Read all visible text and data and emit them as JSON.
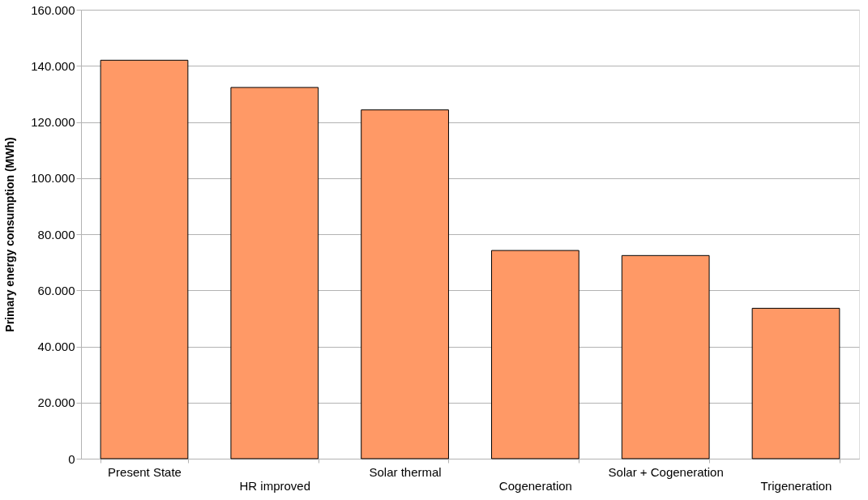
{
  "chart_data": {
    "type": "bar",
    "ylabel": "Primary energy consumption (MWh)",
    "categories": [
      "Present State",
      "HR improved",
      "Solar thermal",
      "Cogeneration",
      "Solar + Cogeneration",
      "Trigeneration"
    ],
    "values": [
      142000,
      132300,
      124300,
      74200,
      72400,
      53600
    ],
    "color": "#ff9966",
    "ylim": [
      0,
      160000
    ],
    "yticks": [
      0,
      {
        "value": 20000,
        "label": "20.000"
      },
      {
        "value": 40000,
        "label": "40.000"
      },
      {
        "value": 60000,
        "label": "60.000"
      },
      {
        "value": 80000,
        "label": "80.000"
      },
      {
        "value": 100000,
        "label": "100.000"
      },
      {
        "value": 120000,
        "label": "120.000"
      },
      {
        "value": 140000,
        "label": "140.000"
      },
      {
        "value": 160000,
        "label": "160.000"
      }
    ],
    "grid": "y"
  }
}
